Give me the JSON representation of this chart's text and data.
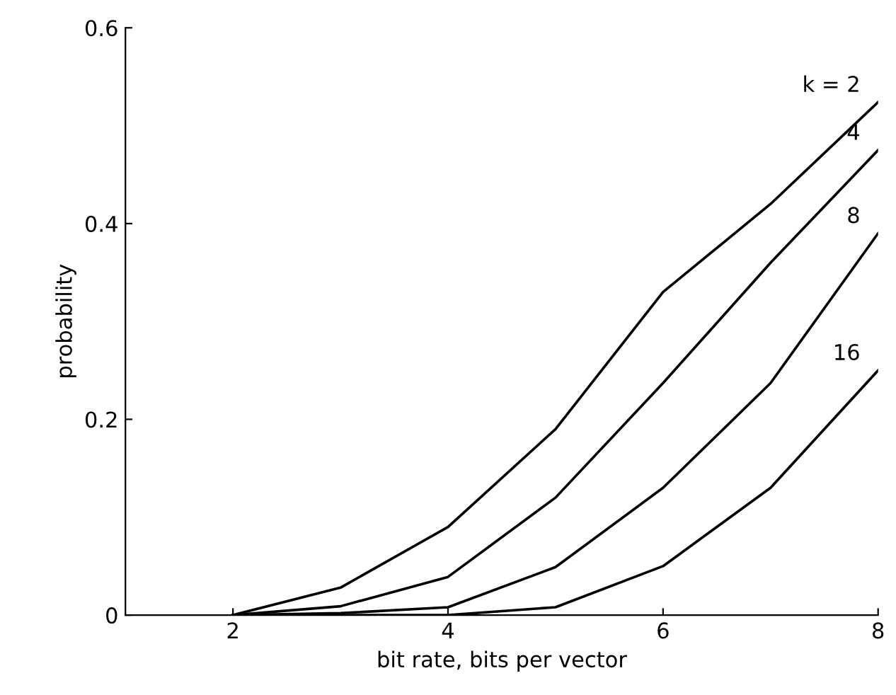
{
  "chart_data": {
    "type": "line",
    "xlabel": "bit rate, bits per vector",
    "ylabel": "probability",
    "x": [
      2,
      3,
      4,
      5,
      6,
      7,
      8
    ],
    "series": [
      {
        "name": "k = 2",
        "color": "#000000",
        "values": [
          0,
          0.028,
          0.09,
          0.19,
          0.33,
          0.42,
          0.524
        ]
      },
      {
        "name": "4",
        "color": "#000000",
        "values": [
          0,
          0.009,
          0.039,
          0.12,
          0.237,
          0.36,
          0.475
        ]
      },
      {
        "name": "8",
        "color": "#000000",
        "values": [
          0,
          0.002,
          0.008,
          0.049,
          0.13,
          0.237,
          0.39
        ]
      },
      {
        "name": "16",
        "color": "#000000",
        "values": [
          0,
          0,
          0,
          0.008,
          0.05,
          0.13,
          0.25
        ]
      }
    ],
    "xlim": [
      1,
      8
    ],
    "ylim": [
      0,
      0.6
    ],
    "xticks": [
      2,
      4,
      6,
      8
    ],
    "yticks": [
      0,
      0.2,
      0.4,
      0.6
    ],
    "grid": false,
    "legend": false,
    "marker": "none",
    "line_style": "solid"
  }
}
